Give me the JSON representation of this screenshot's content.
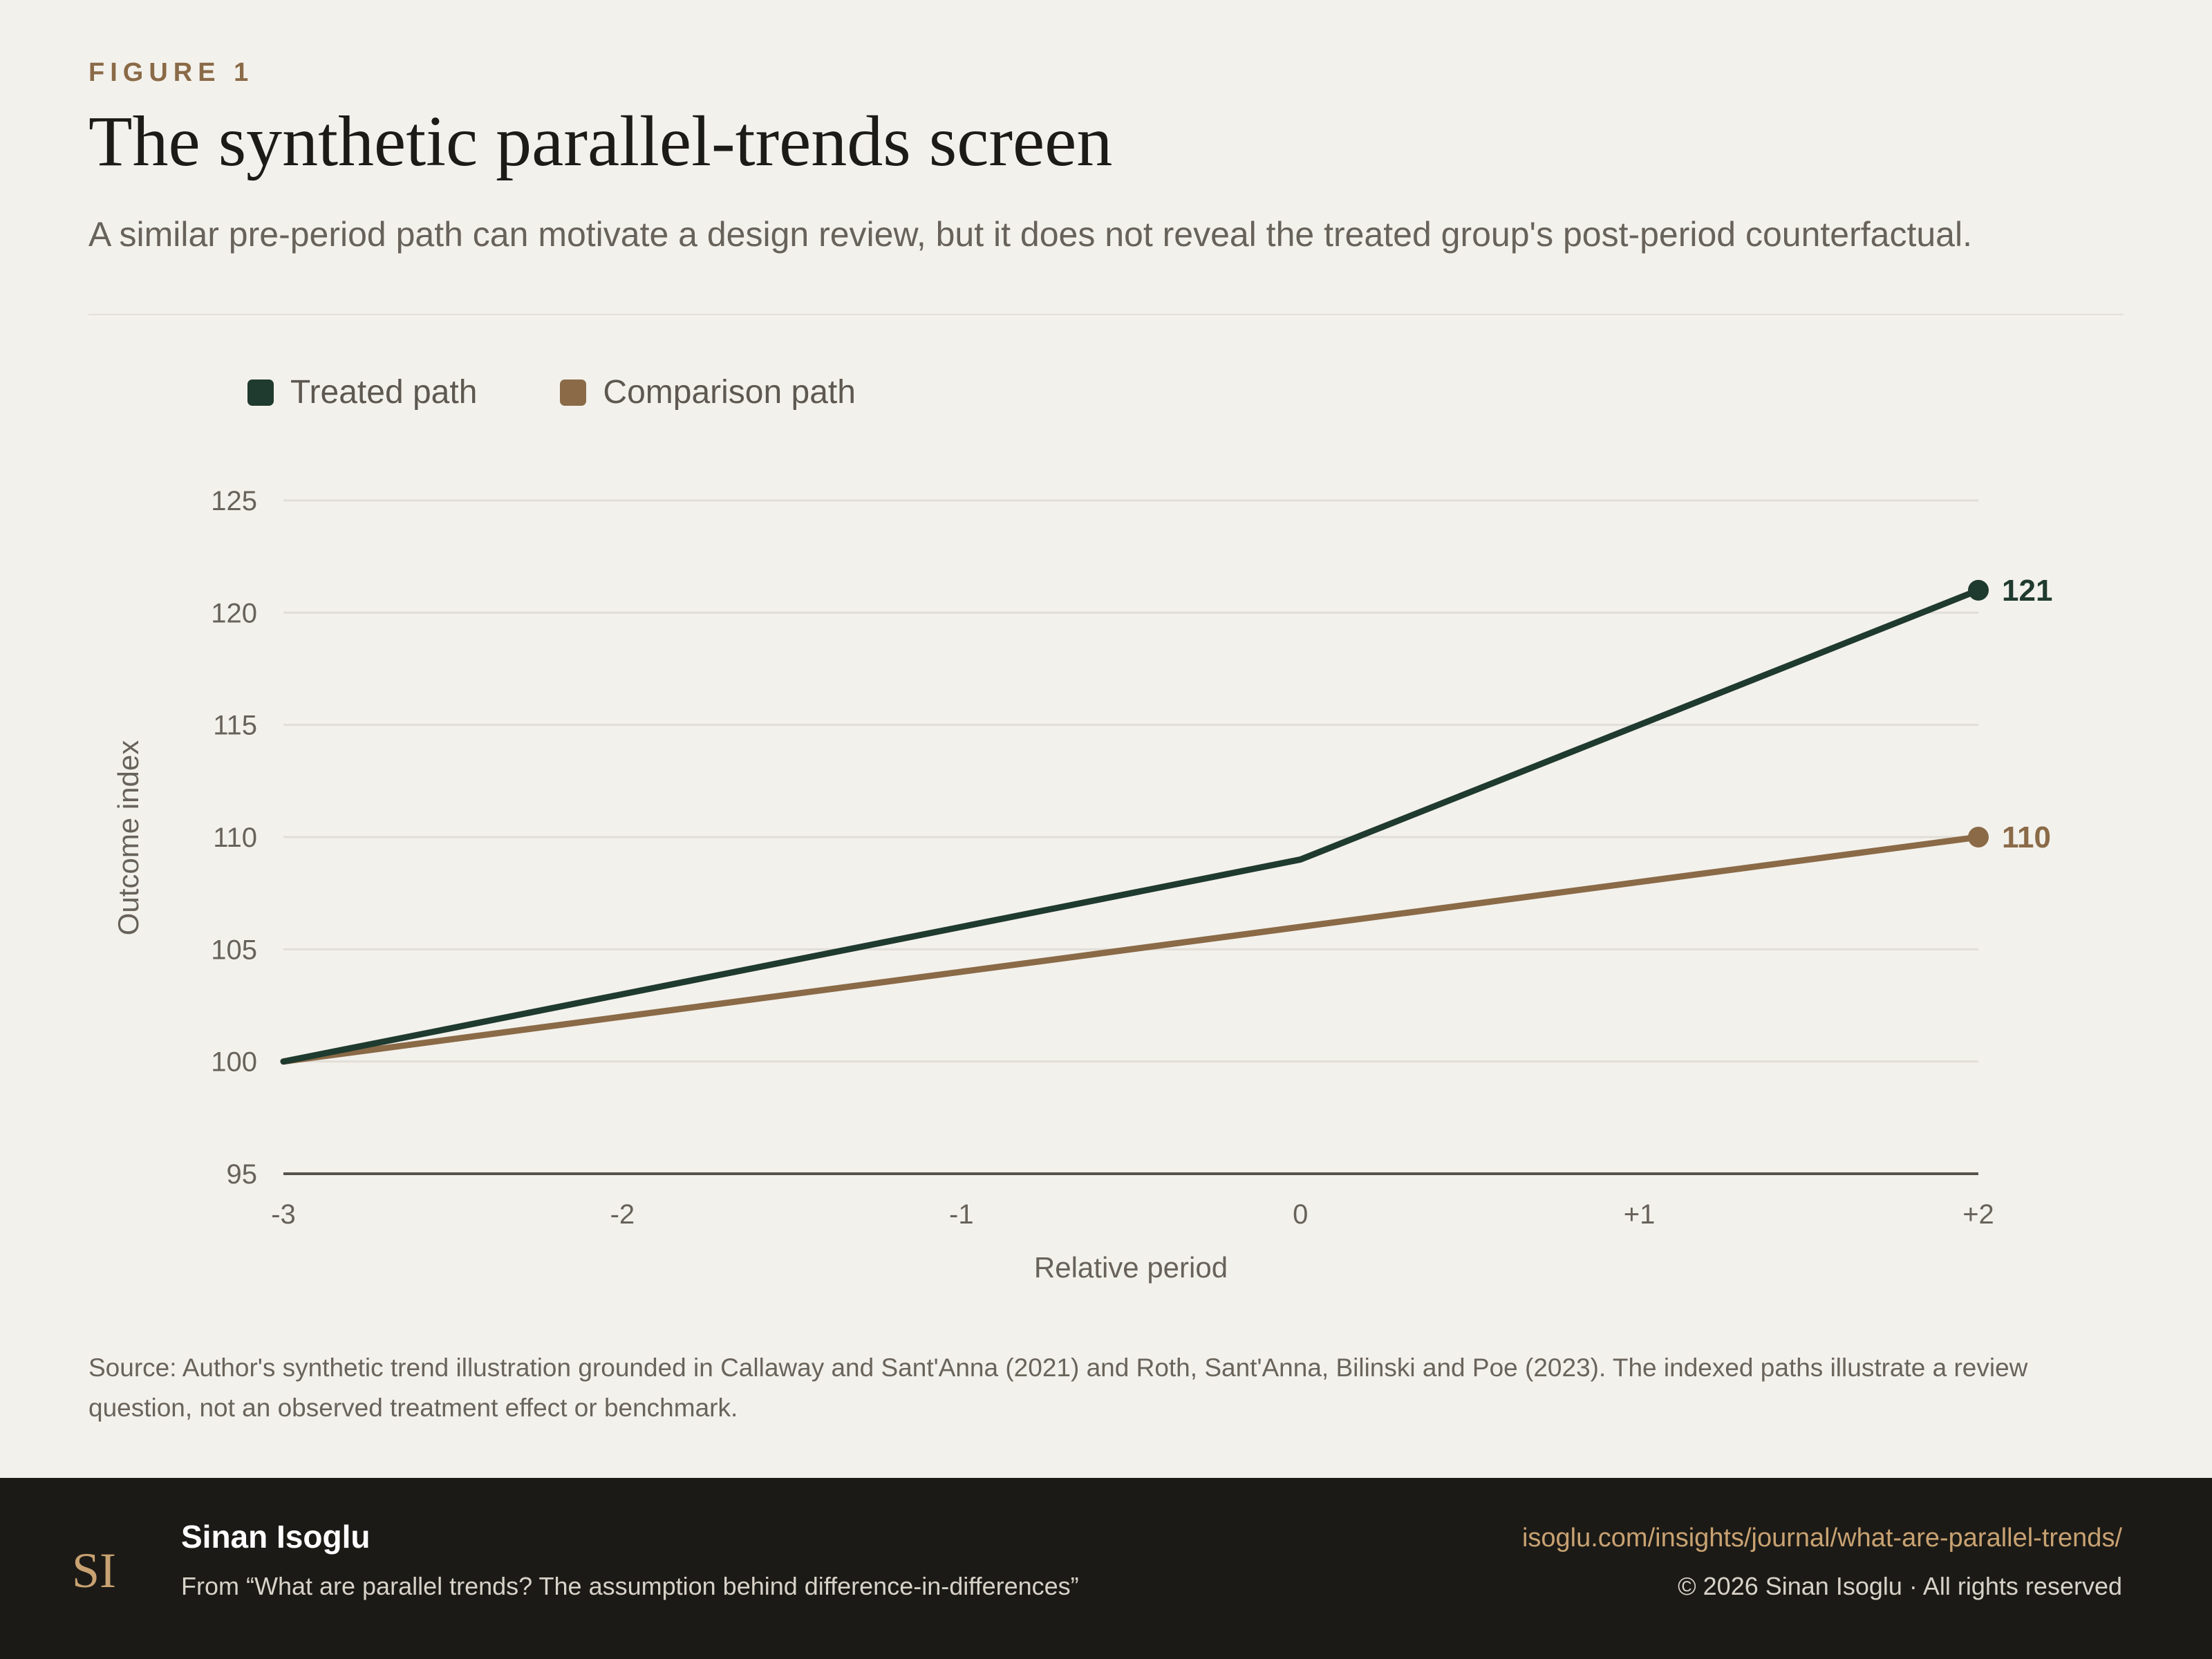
{
  "figure": {
    "eyebrow": "FIGURE 1",
    "title": "The synthetic parallel-trends screen",
    "subtitle": "A similar pre-period path can motivate a design review, but it does not reveal the treated group's post-period counterfactual."
  },
  "colors": {
    "background": "#f3f1ec",
    "treated": "#1f3a2e",
    "comparison": "#8a6a47",
    "footer": "#1c1a16",
    "accent": "#c8a272"
  },
  "chart_data": {
    "type": "line",
    "x": [
      "-3",
      "-2",
      "-1",
      "0",
      "+1",
      "+2"
    ],
    "series": [
      {
        "name": "Treated path",
        "color": "#1f3a2e",
        "values": [
          100,
          103,
          106,
          109,
          115,
          121
        ],
        "end_label": "121"
      },
      {
        "name": "Comparison path",
        "color": "#8a6a47",
        "values": [
          100,
          102,
          104,
          106,
          108,
          110
        ],
        "end_label": "110"
      }
    ],
    "xlabel": "Relative period",
    "ylabel": "Outcome index",
    "ylim": [
      95,
      125
    ],
    "yticks": [
      "95",
      "100",
      "105",
      "110",
      "115",
      "120",
      "125"
    ],
    "grid": true,
    "legend": "top-left"
  },
  "source": "Source: Author's synthetic trend illustration grounded in Callaway and Sant'Anna (2021) and Roth, Sant'Anna, Bilinski and Poe (2023). The indexed paths illustrate a review question, not an observed treatment effect or benchmark.",
  "footer": {
    "logo_icon": "monogram-logo",
    "logo_text": "SI",
    "author": "Sinan Isoglu",
    "article": "From “What are parallel trends? The assumption behind difference-in-differences”",
    "url": "isoglu.com/insights/journal/what-are-parallel-trends/",
    "copyright": "© 2026 Sinan Isoglu · All rights reserved"
  }
}
